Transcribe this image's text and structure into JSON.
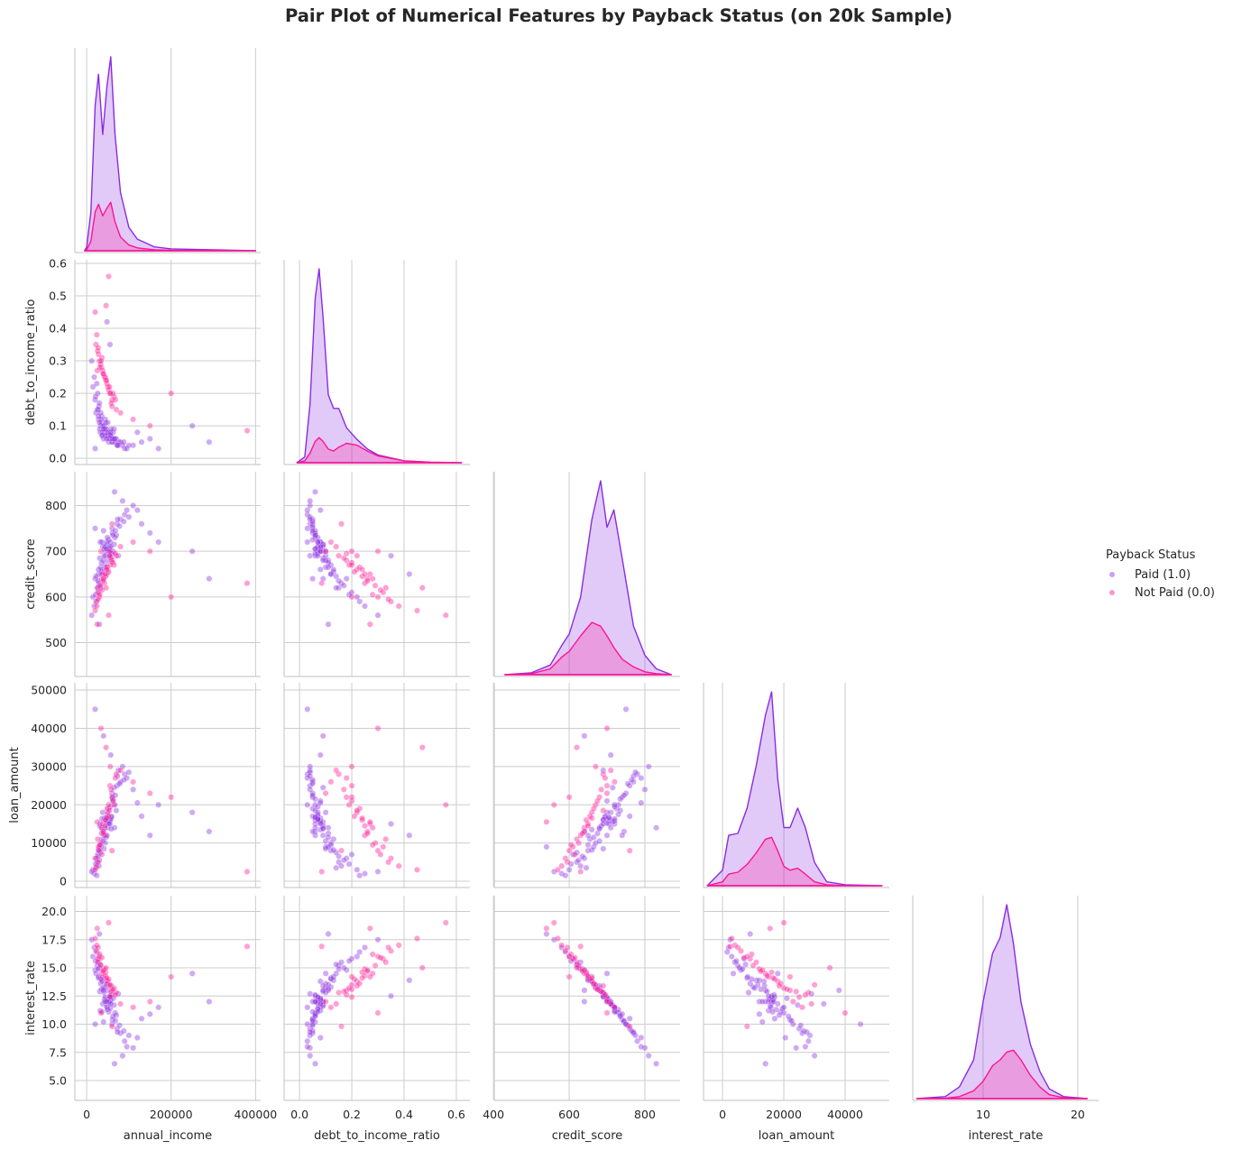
{
  "chart_data": {
    "type": "scatter",
    "subtype": "pairplot-lower-corner",
    "title": "Pair Plot of Numerical Features by Payback Status (on 20k Sample)",
    "legend": {
      "title": "Payback Status",
      "placement": "right",
      "entries": [
        {
          "key": "paid",
          "label": "Paid (1.0)",
          "color": "#8A2BE2"
        },
        {
          "key": "not_paid",
          "label": "Not Paid (0.0)",
          "color": "#FF1493"
        }
      ]
    },
    "grid": true,
    "variables": [
      {
        "name": "annual_income",
        "xlim": [
          -28000,
          412000
        ],
        "xticks": [
          0,
          200000,
          400000
        ],
        "xtick_labels": [
          "0",
          "200000",
          "400000"
        ],
        "ylim": null,
        "yticks": [],
        "ytick_labels": []
      },
      {
        "name": "debt_to_income_ratio",
        "xlim": [
          -0.059,
          0.652
        ],
        "xticks": [
          0,
          0.2,
          0.4,
          0.6
        ],
        "xtick_labels": [
          "0.0",
          "0.2",
          "0.4",
          "0.6"
        ],
        "ylim": [
          -0.019,
          0.611
        ],
        "yticks": [
          0,
          0.1,
          0.2,
          0.3,
          0.4,
          0.5,
          0.6
        ],
        "ytick_labels": [
          "0.0",
          "0.1",
          "0.2",
          "0.3",
          "0.4",
          "0.5",
          "0.6"
        ]
      },
      {
        "name": "credit_score",
        "xlim": [
          402,
          893
        ],
        "xticks": [
          400,
          600,
          800
        ],
        "xtick_labels": [
          "400",
          "600",
          "800"
        ],
        "ylim": [
          426,
          874
        ],
        "yticks": [
          500,
          600,
          700,
          800
        ],
        "ytick_labels": [
          "500",
          "600",
          "700",
          "800"
        ]
      },
      {
        "name": "loan_amount",
        "xlim": [
          -6200,
          54400
        ],
        "xticks": [
          0,
          20000,
          40000
        ],
        "xtick_labels": [
          "0",
          "20000",
          "40000"
        ],
        "ylim": [
          -1640,
          51900
        ],
        "yticks": [
          0,
          10000,
          20000,
          30000,
          40000,
          50000
        ],
        "ytick_labels": [
          "0",
          "10000",
          "20000",
          "30000",
          "40000",
          "50000"
        ]
      },
      {
        "name": "interest_rate",
        "xlim": [
          2.57,
          22.2
        ],
        "xticks": [
          10,
          20
        ],
        "xtick_labels": [
          "10",
          "20"
        ],
        "ylim": [
          3.24,
          21.4
        ],
        "yticks": [
          5,
          7.5,
          10,
          12.5,
          15,
          17.5,
          20
        ],
        "ytick_labels": [
          "5.0",
          "7.5",
          "10.0",
          "12.5",
          "15.0",
          "17.5",
          "20.0"
        ]
      }
    ],
    "kde_relative_density": [
      {
        "x": [
          -5000,
          0,
          10000,
          20000,
          28000,
          38000,
          48000,
          57000,
          67000,
          80000,
          100000,
          120000,
          140000,
          160000,
          200000,
          300000,
          400000
        ],
        "paid": [
          0,
          0.02,
          0.2,
          0.75,
          0.91,
          0.6,
          0.85,
          1.0,
          0.6,
          0.3,
          0.12,
          0.06,
          0.04,
          0.02,
          0.01,
          0.005,
          0
        ],
        "not_paid": [
          0,
          0.005,
          0.05,
          0.2,
          0.24,
          0.18,
          0.22,
          0.25,
          0.15,
          0.07,
          0.03,
          0.015,
          0.01,
          0.005,
          0.003,
          0.002,
          0
        ]
      },
      {
        "x": [
          -0.01,
          0.02,
          0.04,
          0.06,
          0.075,
          0.09,
          0.11,
          0.13,
          0.15,
          0.18,
          0.22,
          0.26,
          0.3,
          0.4,
          0.5,
          0.62
        ],
        "paid": [
          0,
          0.03,
          0.3,
          0.85,
          1.0,
          0.75,
          0.35,
          0.28,
          0.28,
          0.18,
          0.12,
          0.07,
          0.04,
          0.01,
          0.003,
          0
        ],
        "not_paid": [
          0,
          0.01,
          0.05,
          0.11,
          0.13,
          0.11,
          0.07,
          0.06,
          0.08,
          0.1,
          0.09,
          0.06,
          0.035,
          0.01,
          0.003,
          0
        ]
      },
      {
        "x": [
          430,
          500,
          550,
          580,
          600,
          630,
          660,
          683,
          700,
          718,
          740,
          770,
          800,
          830,
          870
        ],
        "paid": [
          0,
          0.01,
          0.05,
          0.15,
          0.21,
          0.4,
          0.8,
          1.0,
          0.76,
          0.85,
          0.6,
          0.25,
          0.1,
          0.03,
          0
        ],
        "not_paid": [
          0,
          0.005,
          0.03,
          0.09,
          0.12,
          0.2,
          0.27,
          0.25,
          0.2,
          0.14,
          0.08,
          0.04,
          0.015,
          0.005,
          0
        ]
      },
      {
        "x": [
          -5000,
          0,
          2000,
          5000,
          8000,
          11000,
          14000,
          16000,
          18000,
          20000,
          22000,
          24500,
          27000,
          30000,
          34000,
          40000,
          52000
        ],
        "paid": [
          0,
          0.08,
          0.26,
          0.27,
          0.4,
          0.62,
          0.88,
          1.0,
          0.55,
          0.3,
          0.3,
          0.4,
          0.3,
          0.12,
          0.02,
          0.005,
          0
        ],
        "not_paid": [
          0,
          0.02,
          0.06,
          0.07,
          0.11,
          0.17,
          0.24,
          0.25,
          0.18,
          0.1,
          0.08,
          0.09,
          0.06,
          0.02,
          0.005,
          0,
          0
        ]
      },
      {
        "x": [
          3,
          6,
          7.5,
          9,
          10,
          11,
          11.8,
          12.5,
          13.2,
          14,
          15,
          16,
          17,
          18.5,
          21
        ],
        "paid": [
          0,
          0.01,
          0.06,
          0.2,
          0.5,
          0.75,
          0.83,
          1.0,
          0.8,
          0.5,
          0.28,
          0.14,
          0.05,
          0.01,
          0
        ],
        "not_paid": [
          0,
          0.002,
          0.01,
          0.04,
          0.09,
          0.17,
          0.2,
          0.24,
          0.25,
          0.2,
          0.12,
          0.06,
          0.02,
          0.005,
          0
        ]
      }
    ],
    "record_fields": [
      "annual_income",
      "debt_to_income_ratio",
      "credit_score",
      "loan_amount",
      "interest_rate"
    ],
    "points_paid": [
      [
        32000,
        0.08,
        720,
        15000,
        11.2
      ],
      [
        55000,
        0.06,
        690,
        16000,
        12.5
      ],
      [
        28000,
        0.12,
        650,
        8000,
        14.1
      ],
      [
        61000,
        0.05,
        740,
        22000,
        10.4
      ],
      [
        45000,
        0.09,
        700,
        12000,
        12.0
      ],
      [
        72000,
        0.04,
        760,
        25000,
        9.6
      ],
      [
        25000,
        0.15,
        620,
        5000,
        15.2
      ],
      [
        38000,
        0.07,
        710,
        18000,
        11.8
      ],
      [
        90000,
        0.03,
        780,
        28000,
        8.5
      ],
      [
        50000,
        0.11,
        680,
        14000,
        13.0
      ],
      [
        15000,
        0.22,
        600,
        3000,
        16.0
      ],
      [
        67000,
        0.06,
        730,
        20000,
        11.0
      ],
      [
        42000,
        0.08,
        705,
        16500,
        12.2
      ],
      [
        33000,
        0.1,
        665,
        9000,
        13.6
      ],
      [
        58000,
        0.07,
        695,
        17000,
        12.4
      ],
      [
        80000,
        0.05,
        770,
        26000,
        9.2
      ],
      [
        20000,
        0.18,
        640,
        6000,
        14.8
      ],
      [
        47000,
        0.09,
        715,
        15500,
        11.6
      ],
      [
        110000,
        0.04,
        800,
        24000,
        7.9
      ],
      [
        36000,
        0.13,
        655,
        11000,
        13.9
      ],
      [
        52000,
        0.05,
        725,
        19000,
        11.1
      ],
      [
        29000,
        0.16,
        630,
        4000,
        15.5
      ],
      [
        63000,
        0.08,
        700,
        21000,
        12.3
      ],
      [
        40000,
        0.06,
        745,
        13000,
        10.2
      ],
      [
        75000,
        0.04,
        690,
        29000,
        12.7
      ],
      [
        18000,
        0.25,
        580,
        2000,
        16.8
      ],
      [
        54000,
        0.07,
        710,
        16000,
        11.9
      ],
      [
        44000,
        0.12,
        670,
        10000,
        13.3
      ],
      [
        95000,
        0.03,
        790,
        27000,
        8.0
      ],
      [
        31000,
        0.09,
        685,
        14500,
        12.9
      ],
      [
        60000,
        0.05,
        750,
        23000,
        10.0
      ],
      [
        26000,
        0.2,
        610,
        7000,
        15.8
      ],
      [
        48000,
        0.08,
        720,
        15800,
        11.5
      ],
      [
        70000,
        0.06,
        735,
        18500,
        10.8
      ],
      [
        35000,
        0.11,
        675,
        12500,
        13.1
      ],
      [
        130000,
        0.05,
        760,
        17000,
        10.5
      ],
      [
        22000,
        0.14,
        645,
        3500,
        14.5
      ],
      [
        57000,
        0.07,
        700,
        16200,
        12.1
      ],
      [
        41000,
        0.1,
        690,
        8500,
        12.8
      ],
      [
        85000,
        0.04,
        810,
        30000,
        7.2
      ],
      [
        30000,
        0.17,
        625,
        5500,
        15.0
      ],
      [
        53000,
        0.06,
        705,
        15000,
        12.0
      ],
      [
        65000,
        0.09,
        715,
        24500,
        11.7
      ],
      [
        37000,
        0.08,
        660,
        13500,
        13.8
      ],
      [
        150000,
        0.06,
        740,
        12000,
        10.9
      ],
      [
        24000,
        0.23,
        590,
        1500,
        16.4
      ],
      [
        49000,
        0.07,
        730,
        17500,
        11.3
      ],
      [
        78000,
        0.05,
        755,
        25500,
        9.9
      ],
      [
        34000,
        0.12,
        650,
        9500,
        14.0
      ],
      [
        59000,
        0.06,
        695,
        16800,
        12.6
      ],
      [
        43000,
        0.09,
        710,
        14000,
        12.0
      ],
      [
        100000,
        0.04,
        775,
        28500,
        9.0
      ],
      [
        27000,
        0.15,
        635,
        6500,
        14.9
      ],
      [
        56000,
        0.07,
        720,
        19500,
        11.4
      ],
      [
        39000,
        0.1,
        680,
        10500,
        13.2
      ],
      [
        68000,
        0.05,
        745,
        22500,
        10.3
      ],
      [
        21000,
        0.19,
        605,
        4500,
        15.6
      ],
      [
        51000,
        0.08,
        700,
        15200,
        12.2
      ],
      [
        170000,
        0.03,
        720,
        20000,
        11.5
      ],
      [
        46000,
        0.11,
        665,
        11500,
        13.5
      ],
      [
        62000,
        0.06,
        735,
        21500,
        10.7
      ],
      [
        33000,
        0.14,
        620,
        7500,
        15.3
      ],
      [
        88000,
        0.05,
        765,
        26500,
        9.4
      ],
      [
        44000,
        0.07,
        690,
        16100,
        12.4
      ],
      [
        250000,
        0.1,
        700,
        18000,
        14.5
      ],
      [
        12000,
        0.3,
        560,
        2500,
        17.5
      ],
      [
        57000,
        0.08,
        710,
        33000,
        11.8
      ],
      [
        40000,
        0.09,
        640,
        38000,
        13.0
      ],
      [
        66000,
        0.06,
        830,
        14000,
        6.5
      ],
      [
        30000,
        0.11,
        540,
        9000,
        18.0
      ],
      [
        55000,
        0.35,
        690,
        15000,
        12.5
      ],
      [
        48000,
        0.42,
        650,
        12000,
        13.9
      ],
      [
        20000,
        0.03,
        750,
        45000,
        10.0
      ],
      [
        290000,
        0.05,
        640,
        13000,
        12.0
      ],
      [
        120000,
        0.08,
        790,
        20500,
        8.8
      ],
      [
        36000,
        0.07,
        720,
        16300,
        11.1
      ],
      [
        58000,
        0.09,
        680,
        13700,
        13.4
      ],
      [
        73000,
        0.04,
        770,
        27500,
        9.3
      ],
      [
        28000,
        0.13,
        660,
        8200,
        14.2
      ],
      [
        47000,
        0.06,
        705,
        16700,
        12.0
      ]
    ],
    "points_not_paid": [
      [
        35000,
        0.28,
        640,
        14000,
        14.5
      ],
      [
        50000,
        0.22,
        660,
        18000,
        13.8
      ],
      [
        28000,
        0.32,
        610,
        9000,
        15.8
      ],
      [
        60000,
        0.18,
        680,
        22000,
        13.0
      ],
      [
        42000,
        0.25,
        630,
        12000,
        14.9
      ],
      [
        22000,
        0.35,
        590,
        6000,
        16.5
      ],
      [
        55000,
        0.2,
        700,
        25000,
        12.4
      ],
      [
        38000,
        0.27,
        650,
        15000,
        14.2
      ],
      [
        70000,
        0.15,
        690,
        28000,
        12.8
      ],
      [
        30000,
        0.3,
        600,
        8000,
        16.0
      ],
      [
        45000,
        0.24,
        645,
        16000,
        14.6
      ],
      [
        65000,
        0.19,
        670,
        20000,
        13.2
      ],
      [
        26000,
        0.33,
        620,
        11000,
        15.5
      ],
      [
        52000,
        0.21,
        655,
        17000,
        14.0
      ],
      [
        80000,
        0.14,
        710,
        29000,
        11.8
      ],
      [
        33000,
        0.29,
        625,
        10000,
        15.2
      ],
      [
        48000,
        0.23,
        665,
        19000,
        13.6
      ],
      [
        58000,
        0.17,
        685,
        24000,
        12.9
      ],
      [
        24000,
        0.38,
        580,
        4000,
        17.0
      ],
      [
        40000,
        0.26,
        640,
        13000,
        14.8
      ],
      [
        62000,
        0.2,
        675,
        21000,
        13.1
      ],
      [
        36000,
        0.31,
        615,
        7000,
        15.9
      ],
      [
        110000,
        0.12,
        720,
        26000,
        11.5
      ],
      [
        44000,
        0.25,
        650,
        14500,
        14.3
      ],
      [
        20000,
        0.45,
        570,
        3000,
        17.6
      ],
      [
        54000,
        0.22,
        690,
        18500,
        13.4
      ],
      [
        31000,
        0.28,
        605,
        9500,
        16.2
      ],
      [
        150000,
        0.1,
        700,
        23000,
        12.0
      ],
      [
        47000,
        0.24,
        660,
        16500,
        14.1
      ],
      [
        68000,
        0.18,
        695,
        27000,
        12.6
      ],
      [
        27000,
        0.34,
        595,
        5000,
        16.8
      ],
      [
        39000,
        0.26,
        635,
        12500,
        14.7
      ],
      [
        56000,
        0.2,
        670,
        30000,
        13.5
      ],
      [
        46000,
        0.47,
        620,
        35000,
        15.0
      ],
      [
        380000,
        0.085,
        630,
        2500,
        16.9
      ],
      [
        200000,
        0.2,
        600,
        22000,
        14.2
      ],
      [
        52000,
        0.56,
        560,
        20000,
        19.0
      ],
      [
        34000,
        0.3,
        700,
        40000,
        11.0
      ],
      [
        25000,
        0.27,
        540,
        15500,
        18.5
      ],
      [
        60000,
        0.16,
        760,
        8000,
        9.8
      ]
    ]
  }
}
